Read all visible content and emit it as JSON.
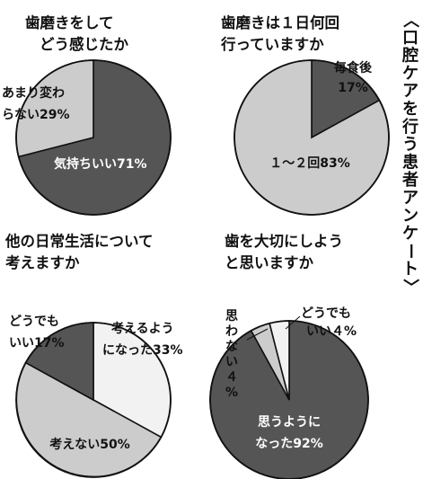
{
  "figure_title": "〈口腔ケアを行う患者アンケート〉",
  "colors": {
    "dark": "#555555",
    "light": "#cccccc",
    "white": "#f2f2f2",
    "outline": "#111111"
  },
  "chart_data": [
    {
      "type": "pie",
      "title": [
        "歯磨きをして",
        "どう感じたか"
      ],
      "slices": [
        {
          "label": "気持ちいい71%",
          "value": 71,
          "color": "dark"
        },
        {
          "label": "あまり変わらない29%",
          "value": 29,
          "color": "light"
        }
      ]
    },
    {
      "type": "pie",
      "title": [
        "歯磨きは１日何回",
        "行っていますか"
      ],
      "slices": [
        {
          "label": "毎食後17%",
          "value": 17,
          "color": "dark"
        },
        {
          "label": "１～２回83%",
          "value": 83,
          "color": "light"
        }
      ]
    },
    {
      "type": "pie",
      "title": [
        "他の日常生活について",
        "考えますか"
      ],
      "slices": [
        {
          "label": "考えるようになった33%",
          "value": 33,
          "color": "white"
        },
        {
          "label": "考えない50%",
          "value": 50,
          "color": "light"
        },
        {
          "label": "どうでもいい17%",
          "value": 17,
          "color": "dark"
        }
      ]
    },
    {
      "type": "pie",
      "title": [
        "歯を大切にしよう",
        "と思いますか"
      ],
      "slices": [
        {
          "label": "思うようになった92%",
          "value": 92,
          "color": "dark"
        },
        {
          "label": "思わない４%",
          "value": 4,
          "color": "light"
        },
        {
          "label": "どうでもいい４%",
          "value": 4,
          "color": "white"
        }
      ]
    }
  ]
}
